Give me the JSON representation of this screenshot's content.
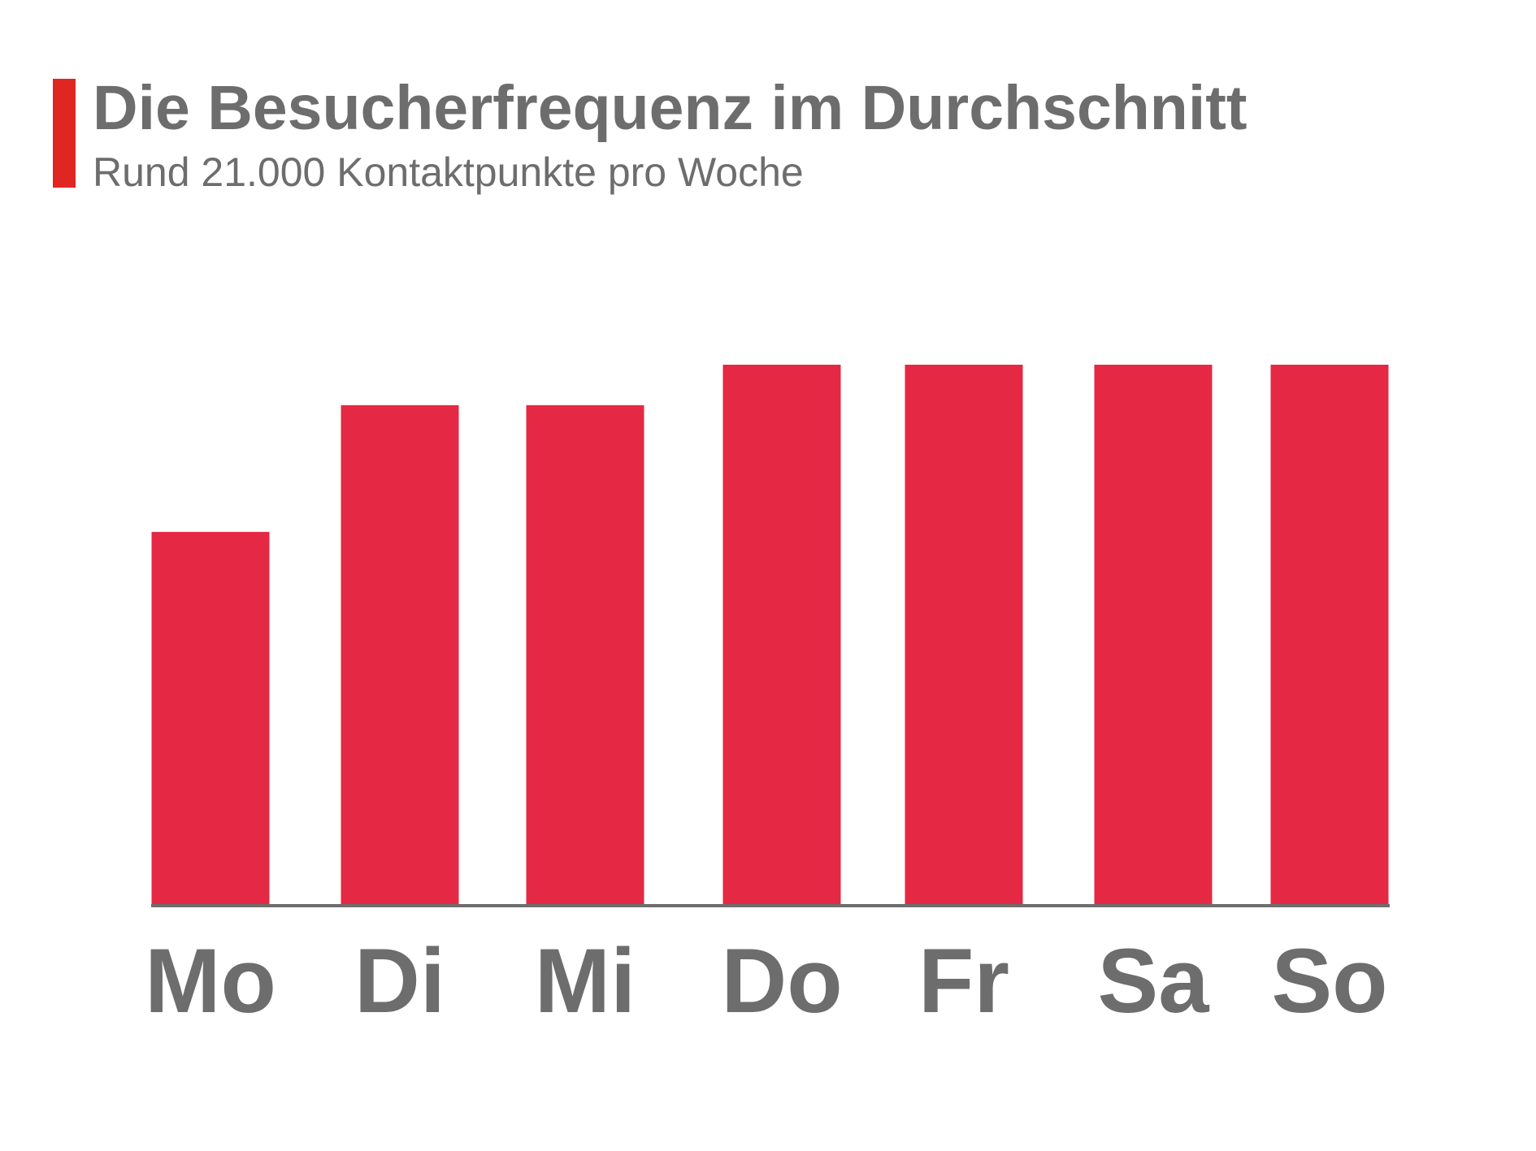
{
  "header": {
    "title": "Die Besucherfrequenz im Durchschnitt",
    "subtitle": "Rund 21.000 Kontaktpunkte pro Woche"
  },
  "colors": {
    "accent": "#e02620",
    "bar": "#e52843",
    "text": "#6d6d6d",
    "axis": "#6d6d6d"
  },
  "chart_data": {
    "type": "bar",
    "title": "Die Besucherfrequenz im Durchschnitt",
    "subtitle": "Rund 21.000 Kontaktpunkte pro Woche",
    "xlabel": "",
    "ylabel": "",
    "categories": [
      "Mo",
      "Di",
      "Mi",
      "Do",
      "Fr",
      "Sa",
      "So"
    ],
    "series": [
      {
        "values": [
          69,
          92.5,
          92.5,
          100,
          100,
          100,
          100
        ]
      }
    ],
    "ylim": [
      0,
      100
    ],
    "grid": false,
    "legend": "none",
    "y_axis_visible": false
  }
}
